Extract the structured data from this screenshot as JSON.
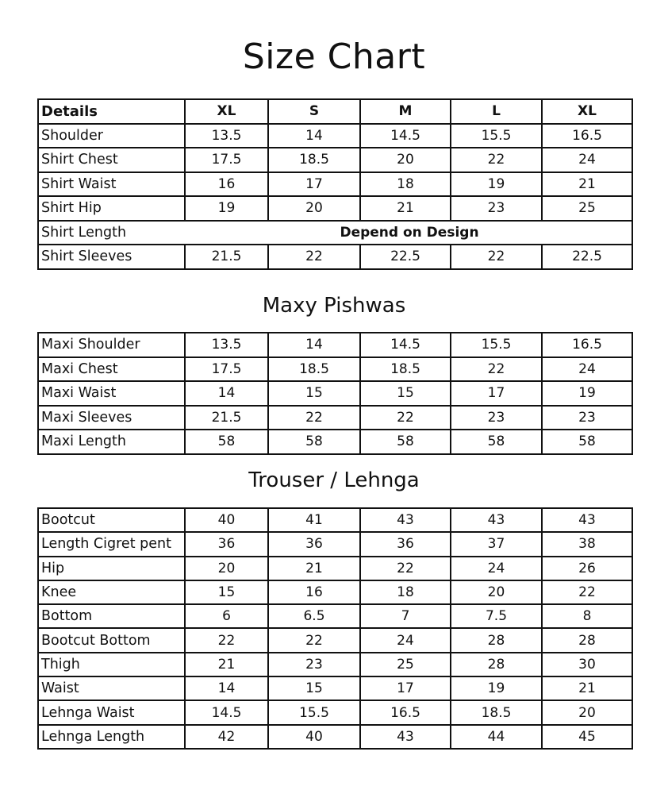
{
  "title": "Size Chart",
  "tables": [
    {
      "heading": "",
      "header": [
        "Details",
        "XL",
        "S",
        "M",
        "L",
        "XL"
      ],
      "rows": [
        {
          "label": "Shoulder",
          "values": [
            "13.5",
            "14",
            "14.5",
            "15.5",
            "16.5"
          ]
        },
        {
          "label": "Shirt Chest",
          "values": [
            "17.5",
            "18.5",
            "20",
            "22",
            "24"
          ]
        },
        {
          "label": "Shirt Waist",
          "values": [
            "16",
            "17",
            "18",
            "19",
            "21"
          ]
        },
        {
          "label": "Shirt Hip",
          "values": [
            "19",
            "20",
            "21",
            "23",
            "25"
          ]
        },
        {
          "label": "Shirt Length",
          "span": "Depend on Design"
        },
        {
          "label": "Shirt Sleeves",
          "values": [
            "21.5",
            "22",
            "22.5",
            "22",
            "22.5"
          ]
        }
      ]
    },
    {
      "heading": "Maxy Pishwas",
      "rows": [
        {
          "label": "Maxi Shoulder",
          "values": [
            "13.5",
            "14",
            "14.5",
            "15.5",
            "16.5"
          ]
        },
        {
          "label": "Maxi Chest",
          "values": [
            "17.5",
            "18.5",
            "18.5",
            "22",
            "24"
          ]
        },
        {
          "label": "Maxi Waist",
          "values": [
            "14",
            "15",
            "15",
            "17",
            "19"
          ]
        },
        {
          "label": "Maxi Sleeves",
          "values": [
            "21.5",
            "22",
            "22",
            "23",
            "23"
          ]
        },
        {
          "label": "Maxi Length",
          "values": [
            "58",
            "58",
            "58",
            "58",
            "58"
          ]
        }
      ]
    },
    {
      "heading": "Trouser / Lehnga",
      "rows": [
        {
          "label": "Bootcut",
          "values": [
            "40",
            "41",
            "43",
            "43",
            "43"
          ]
        },
        {
          "label": "Length Cigret pent",
          "values": [
            "36",
            "36",
            "36",
            "37",
            "38"
          ]
        },
        {
          "label": "Hip",
          "values": [
            "20",
            "21",
            "22",
            "24",
            "26"
          ]
        },
        {
          "label": "Knee",
          "values": [
            "15",
            "16",
            "18",
            "20",
            "22"
          ]
        },
        {
          "label": "Bottom",
          "values": [
            "6",
            "6.5",
            "7",
            "7.5",
            "8"
          ]
        },
        {
          "label": "Bootcut Bottom",
          "values": [
            "22",
            "22",
            "24",
            "28",
            "28"
          ]
        },
        {
          "label": "Thigh",
          "values": [
            "21",
            "23",
            "25",
            "28",
            "30"
          ]
        },
        {
          "label": "Waist",
          "values": [
            "14",
            "15",
            "17",
            "19",
            "21"
          ]
        },
        {
          "label": "Lehnga Waist",
          "values": [
            "14.5",
            "15.5",
            "16.5",
            "18.5",
            "20"
          ]
        },
        {
          "label": "Lehnga Length",
          "values": [
            "42",
            "40",
            "43",
            "44",
            "45"
          ]
        }
      ]
    }
  ]
}
